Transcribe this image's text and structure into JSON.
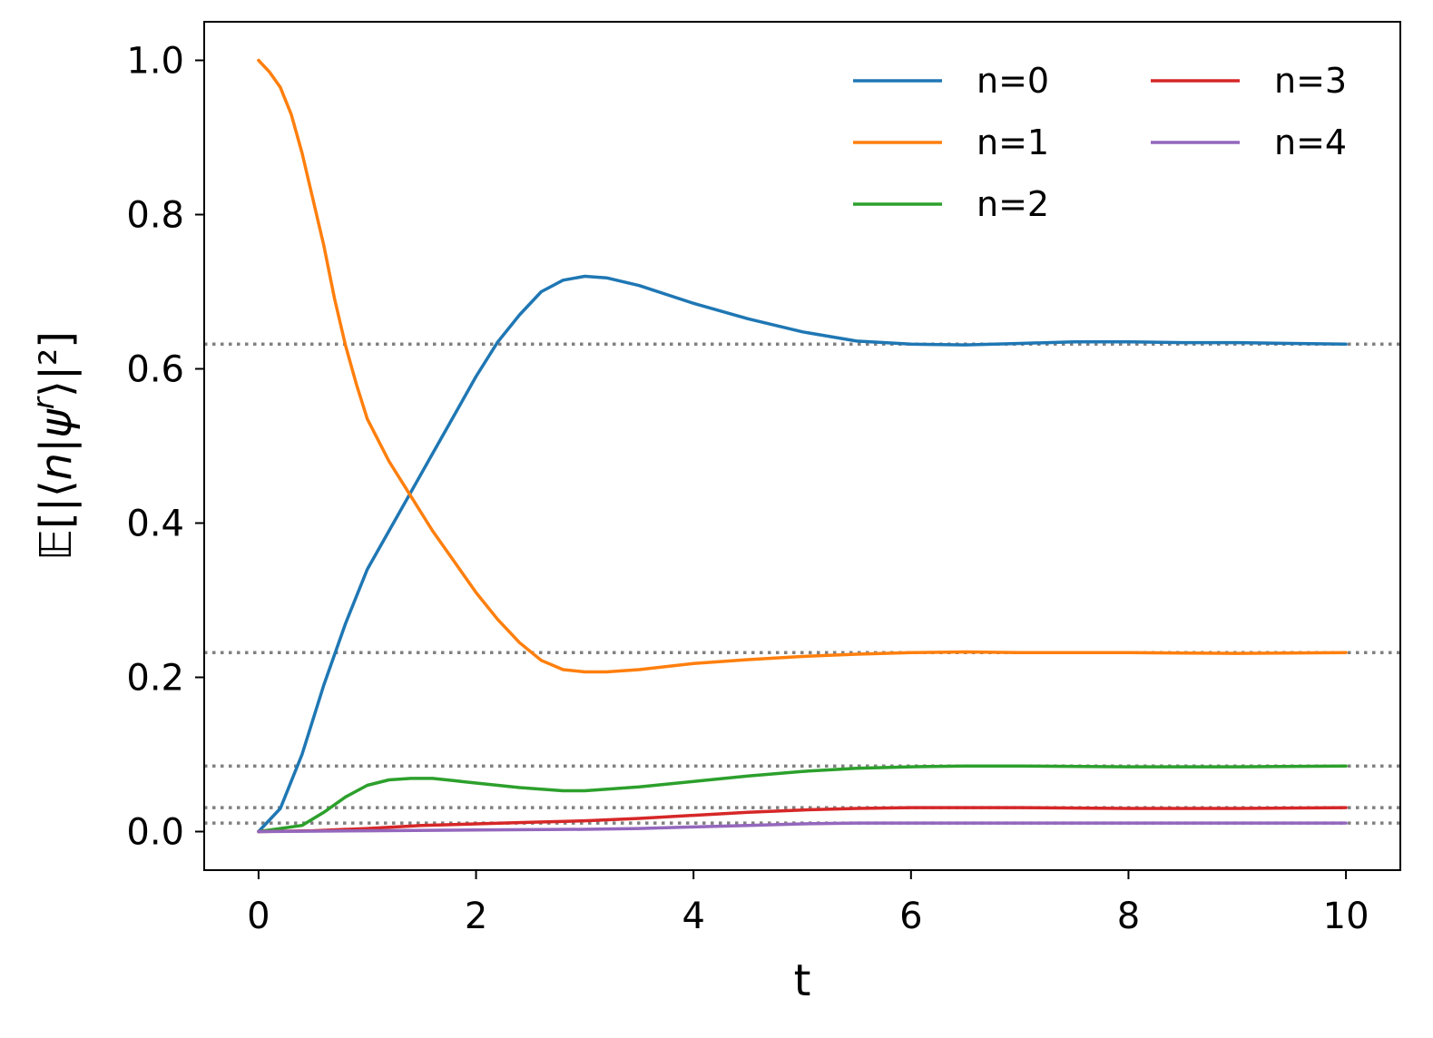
{
  "chart_data": {
    "type": "line",
    "xlabel": "t",
    "ylabel": {
      "prefix": "𝔼[|⟨",
      "n": "n",
      "bar": "|",
      "psi": "ψ",
      "sup": "r",
      "suffix": "⟩|²]"
    },
    "xlim": [
      -0.5,
      10.5
    ],
    "ylim": [
      -0.05,
      1.05
    ],
    "xticks": [
      0,
      2,
      4,
      6,
      8,
      10
    ],
    "xtick_labels": [
      "0",
      "2",
      "4",
      "6",
      "8",
      "10"
    ],
    "yticks": [
      0.0,
      0.2,
      0.4,
      0.6,
      0.8,
      1.0
    ],
    "ytick_labels": [
      "0.0",
      "0.2",
      "0.4",
      "0.6",
      "0.8",
      "1.0"
    ],
    "grid": false,
    "legend": {
      "placement": "top-right",
      "columns": 2
    },
    "reference_lines": {
      "style": "dotted",
      "color": "#808080",
      "y": [
        0.632,
        0.232,
        0.085,
        0.031,
        0.011
      ]
    },
    "series": [
      {
        "name": "n=0",
        "color": "#1f77b4",
        "x": [
          0,
          0.2,
          0.4,
          0.6,
          0.8,
          1.0,
          1.2,
          1.4,
          1.6,
          1.8,
          2.0,
          2.2,
          2.4,
          2.6,
          2.8,
          3.0,
          3.2,
          3.5,
          4.0,
          4.5,
          5.0,
          5.5,
          6.0,
          6.5,
          7.0,
          7.5,
          8.0,
          8.5,
          9.0,
          9.5,
          10.0
        ],
        "y": [
          0.0,
          0.03,
          0.1,
          0.19,
          0.27,
          0.34,
          0.39,
          0.44,
          0.49,
          0.54,
          0.59,
          0.635,
          0.67,
          0.7,
          0.715,
          0.72,
          0.718,
          0.708,
          0.685,
          0.665,
          0.648,
          0.636,
          0.632,
          0.631,
          0.633,
          0.635,
          0.635,
          0.634,
          0.634,
          0.633,
          0.632
        ]
      },
      {
        "name": "n=1",
        "color": "#ff7f0e",
        "x": [
          0,
          0.1,
          0.2,
          0.3,
          0.4,
          0.5,
          0.6,
          0.7,
          0.8,
          0.9,
          1.0,
          1.2,
          1.4,
          1.6,
          1.8,
          2.0,
          2.2,
          2.4,
          2.6,
          2.8,
          3.0,
          3.2,
          3.5,
          4.0,
          4.5,
          5.0,
          5.5,
          6.0,
          6.5,
          7.0,
          8.0,
          9.0,
          10.0
        ],
        "y": [
          1.0,
          0.985,
          0.965,
          0.93,
          0.88,
          0.82,
          0.76,
          0.69,
          0.63,
          0.58,
          0.535,
          0.48,
          0.435,
          0.39,
          0.35,
          0.31,
          0.275,
          0.245,
          0.222,
          0.21,
          0.207,
          0.207,
          0.21,
          0.218,
          0.223,
          0.227,
          0.23,
          0.232,
          0.233,
          0.232,
          0.232,
          0.231,
          0.232
        ]
      },
      {
        "name": "n=2",
        "color": "#2ca02c",
        "x": [
          0,
          0.2,
          0.4,
          0.6,
          0.8,
          1.0,
          1.2,
          1.4,
          1.6,
          1.8,
          2.0,
          2.4,
          2.8,
          3.0,
          3.5,
          4.0,
          4.5,
          5.0,
          5.5,
          6.0,
          6.5,
          7.0,
          8.0,
          9.0,
          10.0
        ],
        "y": [
          0.0,
          0.004,
          0.008,
          0.025,
          0.045,
          0.06,
          0.067,
          0.069,
          0.069,
          0.066,
          0.063,
          0.057,
          0.053,
          0.053,
          0.058,
          0.065,
          0.072,
          0.078,
          0.082,
          0.084,
          0.085,
          0.085,
          0.084,
          0.084,
          0.085
        ]
      },
      {
        "name": "n=3",
        "color": "#d62728",
        "x": [
          0,
          0.5,
          1.0,
          1.5,
          2.0,
          2.5,
          3.0,
          3.5,
          4.0,
          4.5,
          5.0,
          5.5,
          6.0,
          6.5,
          7.0,
          8.0,
          9.0,
          10.0
        ],
        "y": [
          0.0,
          0.001,
          0.004,
          0.008,
          0.01,
          0.012,
          0.014,
          0.017,
          0.021,
          0.025,
          0.028,
          0.03,
          0.031,
          0.031,
          0.031,
          0.03,
          0.03,
          0.031
        ]
      },
      {
        "name": "n=4",
        "color": "#9467bd",
        "x": [
          0,
          1.0,
          2.0,
          3.0,
          3.5,
          4.0,
          4.5,
          5.0,
          5.5,
          6.0,
          7.0,
          8.0,
          9.0,
          10.0
        ],
        "y": [
          0.0,
          0.001,
          0.002,
          0.003,
          0.004,
          0.006,
          0.008,
          0.01,
          0.011,
          0.011,
          0.011,
          0.011,
          0.011,
          0.011
        ]
      }
    ]
  }
}
